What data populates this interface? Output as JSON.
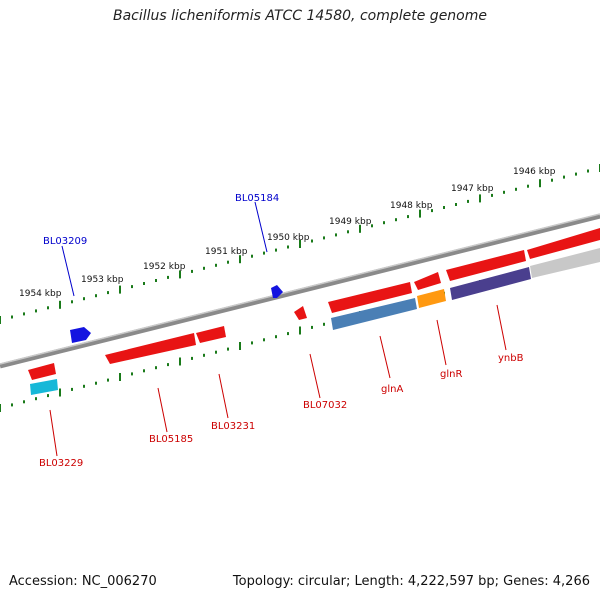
{
  "title": "Bacillus licheniformis ATCC 14580, complete genome",
  "footer": {
    "accession": "Accession: NC_006270",
    "topology": "Topology: circular; Length: 4,222,597 bp; Genes: 4,266"
  },
  "colors": {
    "forward_label": "#0000cc",
    "reverse_label": "#cc0000",
    "scale": "#1a7a1a",
    "backbone": "#888888"
  },
  "scale_labels": [
    "1954 kbp",
    "1953 kbp",
    "1952 kbp",
    "1951 kbp",
    "1950 kbp",
    "1949 kbp",
    "1948 kbp",
    "1947 kbp",
    "1946 kbp"
  ],
  "gene_labels": [
    "BL03209",
    "BL05184",
    "BL03229",
    "BL05185",
    "BL03231",
    "BL07032",
    "glnA",
    "glnR",
    "ynbB"
  ]
}
